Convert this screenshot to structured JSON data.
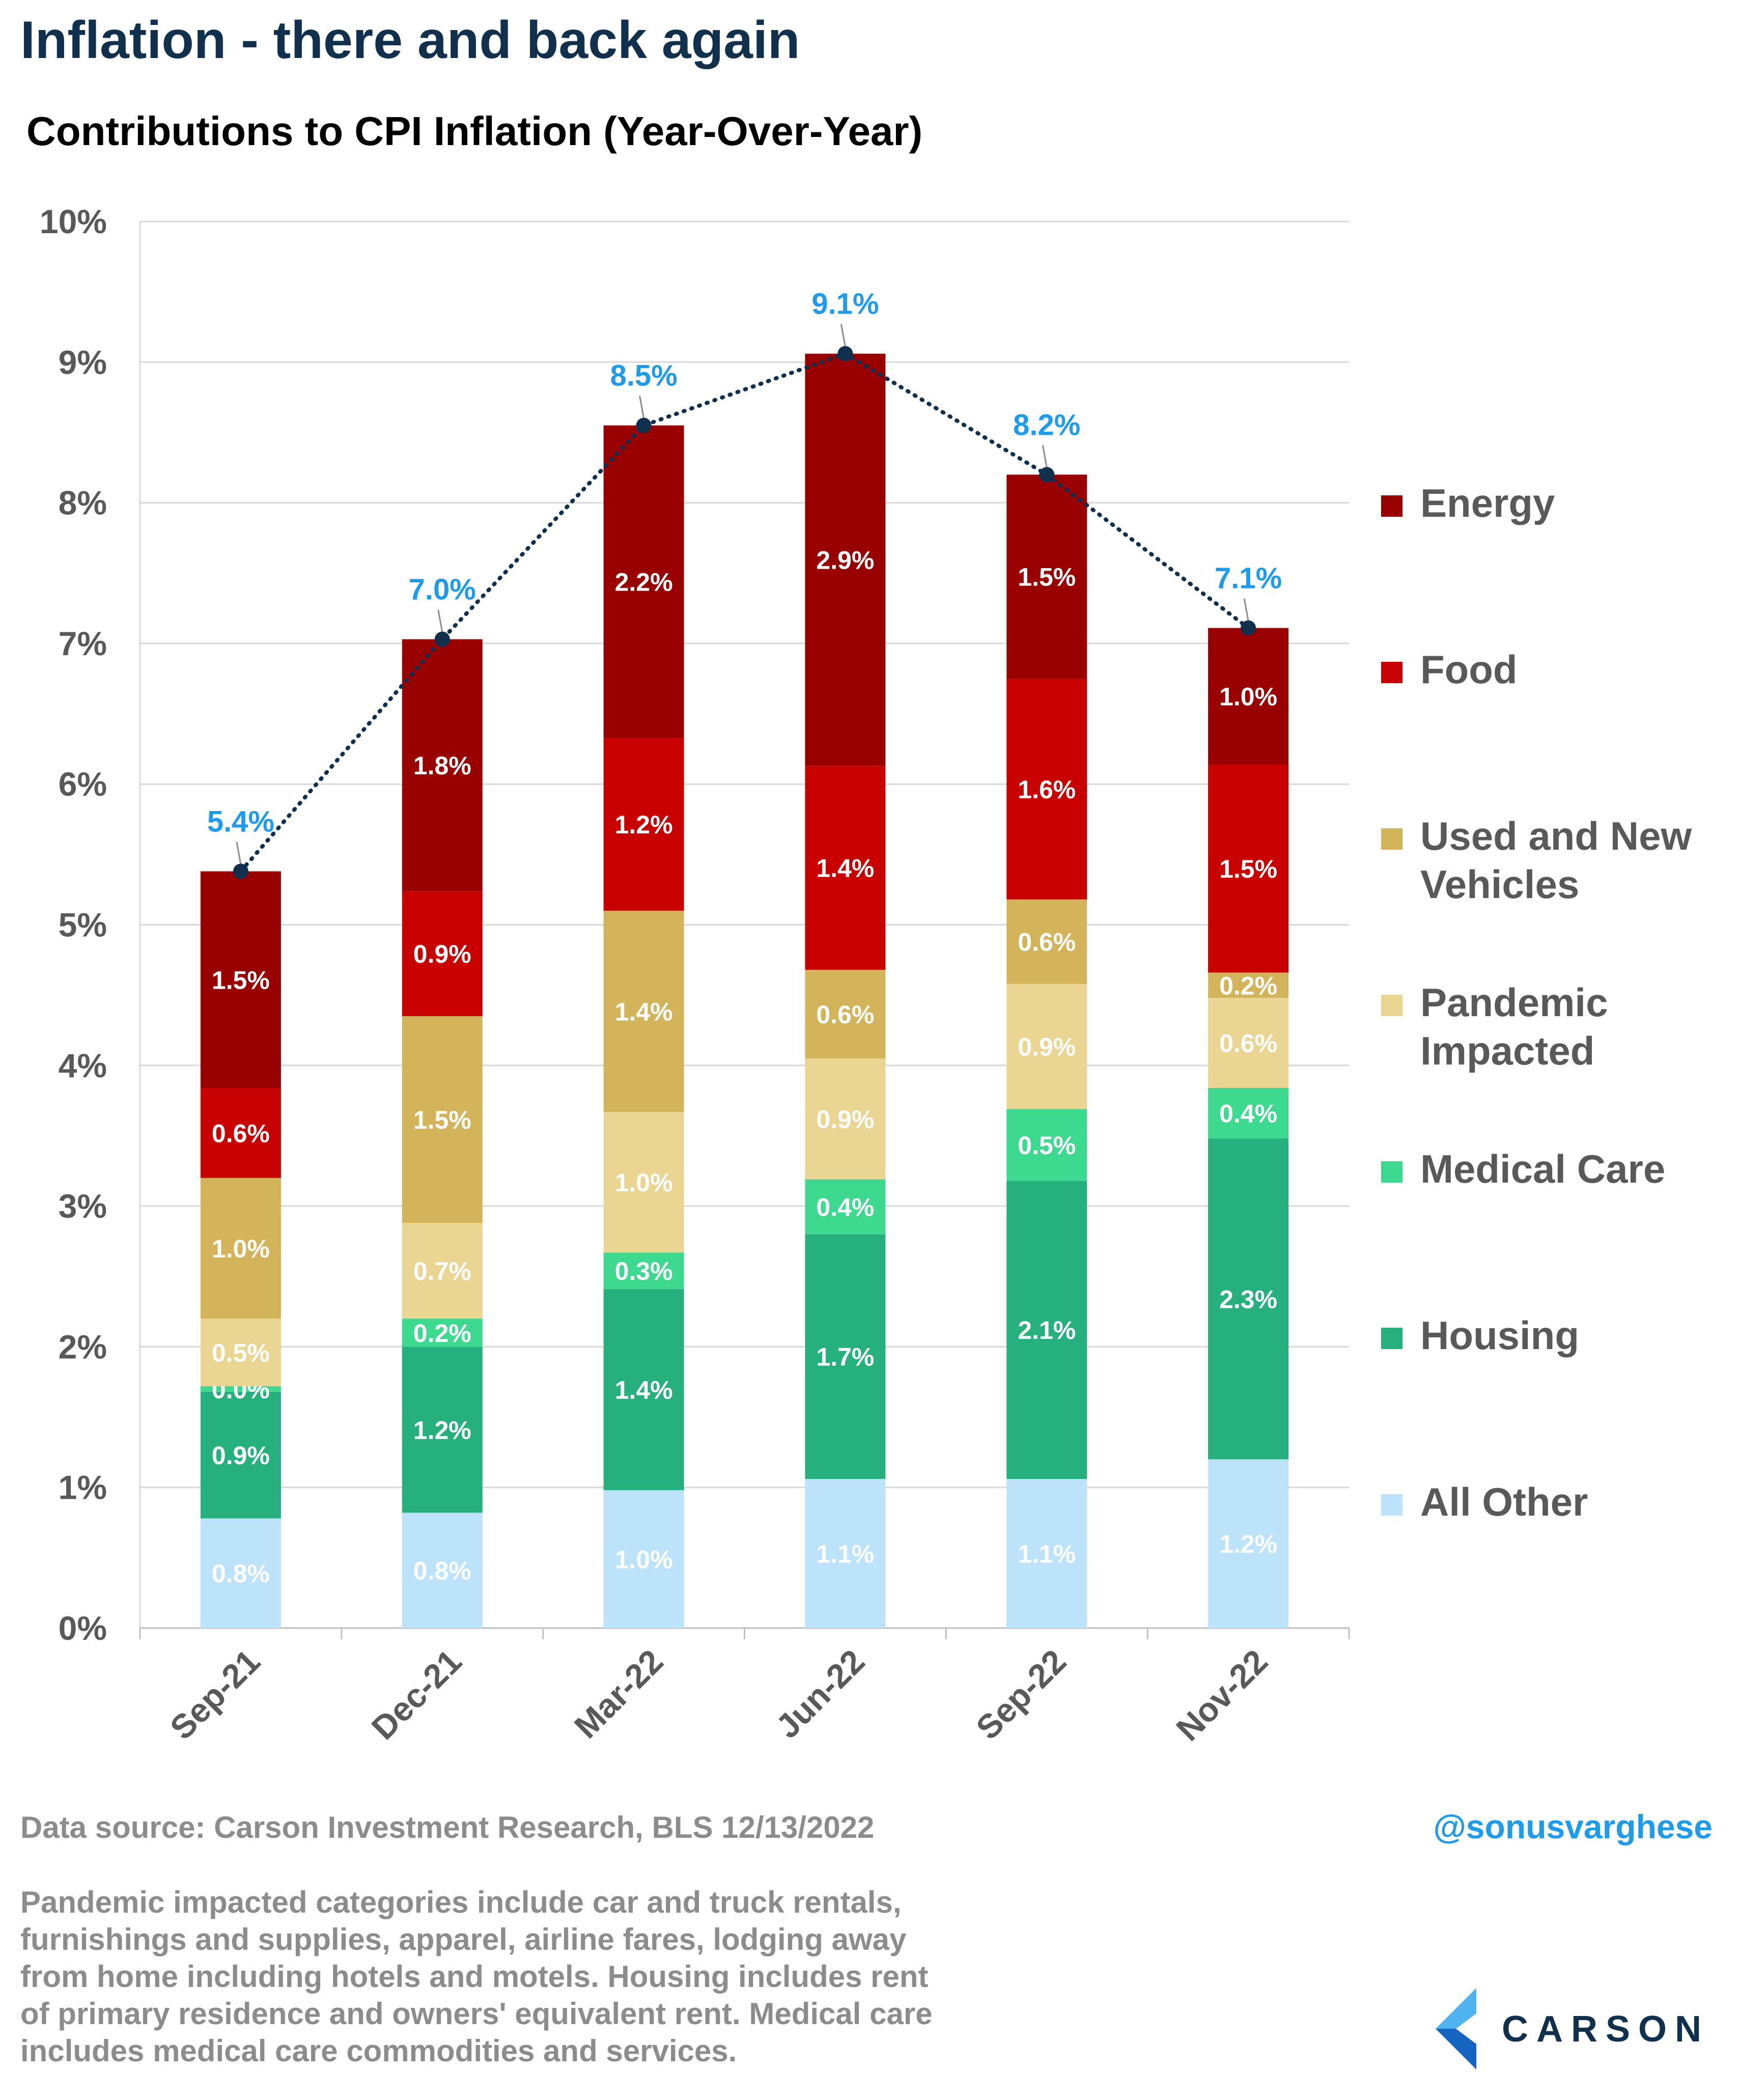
{
  "header": {
    "title": "Inflation - there and back again",
    "subtitle": "Contributions to CPI Inflation (Year-Over-Year)"
  },
  "chart_data": {
    "type": "bar",
    "stacked": true,
    "categories": [
      "Sep-21",
      "Dec-21",
      "Mar-22",
      "Jun-22",
      "Sep-22",
      "Nov-22"
    ],
    "ylim": [
      0,
      10
    ],
    "yticks": [
      "0%",
      "1%",
      "2%",
      "3%",
      "4%",
      "5%",
      "6%",
      "7%",
      "8%",
      "9%",
      "10%"
    ],
    "grid": true,
    "legend_position": "right",
    "series": [
      {
        "name": "All Other",
        "color": "#bde3fb",
        "values": [
          0.78,
          0.82,
          0.98,
          1.06,
          1.06,
          1.2
        ],
        "labels": [
          "0.8%",
          "0.8%",
          "1.0%",
          "1.1%",
          "1.1%",
          "1.2%"
        ]
      },
      {
        "name": "Housing",
        "color": "#25b07d",
        "values": [
          0.9,
          1.18,
          1.43,
          1.74,
          2.12,
          2.28
        ],
        "labels": [
          "0.9%",
          "1.2%",
          "1.4%",
          "1.7%",
          "2.1%",
          "2.3%"
        ]
      },
      {
        "name": "Medical Care",
        "color": "#3dd98e",
        "values": [
          0.04,
          0.2,
          0.26,
          0.39,
          0.51,
          0.36
        ],
        "labels": [
          "0.0%",
          "0.2%",
          "0.3%",
          "0.4%",
          "0.5%",
          "0.4%"
        ]
      },
      {
        "name": "Pandemic Impacted",
        "color": "#ead592",
        "values": [
          0.48,
          0.68,
          1.0,
          0.86,
          0.89,
          0.64
        ],
        "labels": [
          "0.5%",
          "0.7%",
          "1.0%",
          "0.9%",
          "0.9%",
          "0.6%"
        ]
      },
      {
        "name": "Used and New Vehicles",
        "color": "#d4b45a",
        "values": [
          1.0,
          1.47,
          1.43,
          0.63,
          0.6,
          0.18
        ],
        "labels": [
          "1.0%",
          "1.5%",
          "1.4%",
          "0.6%",
          "0.6%",
          "0.2%"
        ]
      },
      {
        "name": "Food",
        "color": "#c90000",
        "values": [
          0.64,
          0.89,
          1.23,
          1.45,
          1.57,
          1.48
        ],
        "labels": [
          "0.6%",
          "0.9%",
          "1.2%",
          "1.4%",
          "1.6%",
          "1.5%"
        ]
      },
      {
        "name": "Energy",
        "color": "#990000",
        "values": [
          1.54,
          1.79,
          2.22,
          2.93,
          1.45,
          0.97
        ],
        "labels": [
          "1.5%",
          "1.8%",
          "2.2%",
          "2.9%",
          "1.5%",
          "1.0%"
        ]
      }
    ],
    "totals": [
      5.38,
      7.03,
      8.55,
      9.06,
      8.2,
      7.11
    ],
    "total_labels": [
      "5.4%",
      "7.0%",
      "8.5%",
      "9.1%",
      "8.2%",
      "7.1%"
    ],
    "total_line_style": "dotted",
    "total_line_color": "#10304d",
    "legend_order": [
      "Energy",
      "Food",
      "Used and New Vehicles",
      "Pandemic Impacted",
      "Medical Care",
      "Housing",
      "All Other"
    ]
  },
  "legend": {
    "vehicles_line1": "Used and New",
    "vehicles_line2": "Vehicles",
    "pandemic_line1": "Pandemic",
    "pandemic_line2": "Impacted"
  },
  "footer": {
    "source": "Data source: Carson Investment Research, BLS   12/13/2022",
    "handle": "@sonusvarghese",
    "note_lines": [
      "Pandemic impacted categories include car and truck rentals,",
      "furnishings and supplies, apparel, airline fares, lodging away",
      "from home including hotels and motels. Housing includes rent",
      "of primary residence and owners' equivalent rent. Medical care",
      "includes medical care commodities and services."
    ],
    "logo_text": "CARSON"
  },
  "colors": {
    "title": "#10304d",
    "total_label": "#1e9bea",
    "axis_text": "#595959",
    "gridline": "#d9d9d9"
  }
}
